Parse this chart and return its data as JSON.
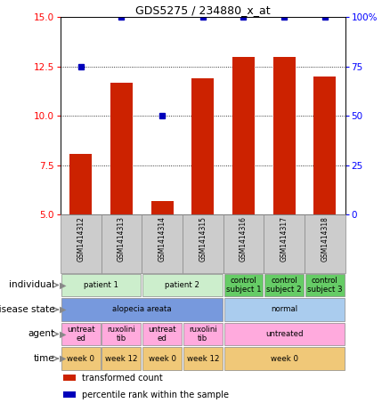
{
  "title": "GDS5275 / 234880_x_at",
  "samples": [
    "GSM1414312",
    "GSM1414313",
    "GSM1414314",
    "GSM1414315",
    "GSM1414316",
    "GSM1414317",
    "GSM1414318"
  ],
  "bar_values": [
    8.1,
    11.7,
    5.7,
    11.9,
    13.0,
    13.0,
    12.0
  ],
  "dot_values": [
    75,
    100,
    50,
    100,
    100,
    100,
    100
  ],
  "ylim_left": [
    5,
    15
  ],
  "ylim_right": [
    0,
    100
  ],
  "yticks_left": [
    5,
    7.5,
    10,
    12.5,
    15
  ],
  "yticks_right": [
    0,
    25,
    50,
    75,
    100
  ],
  "bar_color": "#cc2200",
  "dot_color": "#0000bb",
  "annotation_rows": [
    {
      "label": "individual",
      "cells": [
        {
          "text": "patient 1",
          "span": 2,
          "color": "#cceecc"
        },
        {
          "text": "patient 2",
          "span": 2,
          "color": "#cceecc"
        },
        {
          "text": "control\nsubject 1",
          "span": 1,
          "color": "#66cc66"
        },
        {
          "text": "control\nsubject 2",
          "span": 1,
          "color": "#66cc66"
        },
        {
          "text": "control\nsubject 3",
          "span": 1,
          "color": "#66cc66"
        }
      ]
    },
    {
      "label": "disease state",
      "cells": [
        {
          "text": "alopecia areata",
          "span": 4,
          "color": "#7799dd"
        },
        {
          "text": "normal",
          "span": 3,
          "color": "#aaccee"
        }
      ]
    },
    {
      "label": "agent",
      "cells": [
        {
          "text": "untreat\ned",
          "span": 1,
          "color": "#ffaadd"
        },
        {
          "text": "ruxolini\ntib",
          "span": 1,
          "color": "#ffaadd"
        },
        {
          "text": "untreat\ned",
          "span": 1,
          "color": "#ffaadd"
        },
        {
          "text": "ruxolini\ntib",
          "span": 1,
          "color": "#ffaadd"
        },
        {
          "text": "untreated",
          "span": 3,
          "color": "#ffaadd"
        }
      ]
    },
    {
      "label": "time",
      "cells": [
        {
          "text": "week 0",
          "span": 1,
          "color": "#f0c878"
        },
        {
          "text": "week 12",
          "span": 1,
          "color": "#f0c878"
        },
        {
          "text": "week 0",
          "span": 1,
          "color": "#f0c878"
        },
        {
          "text": "week 12",
          "span": 1,
          "color": "#f0c878"
        },
        {
          "text": "week 0",
          "span": 3,
          "color": "#f0c878"
        }
      ]
    }
  ],
  "legend_items": [
    {
      "color": "#cc2200",
      "label": "transformed count"
    },
    {
      "color": "#0000bb",
      "label": "percentile rank within the sample"
    }
  ]
}
